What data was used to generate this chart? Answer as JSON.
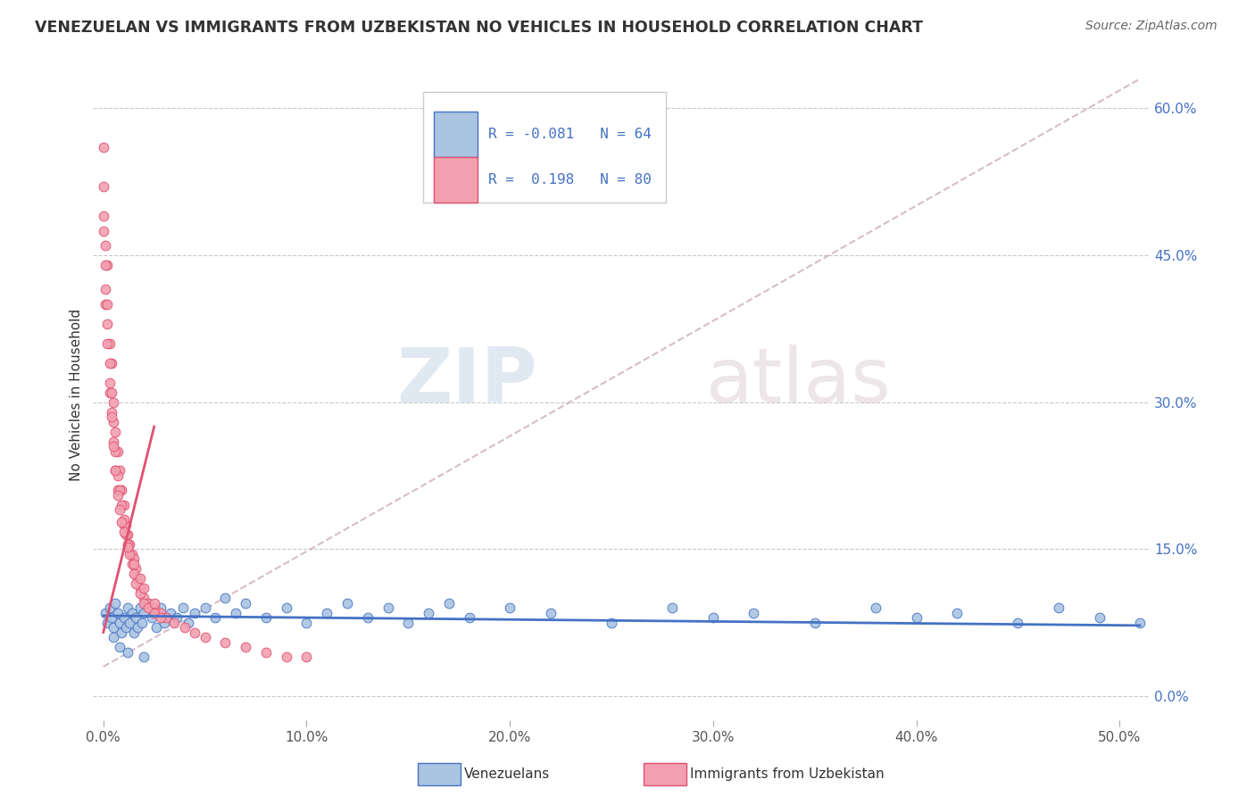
{
  "title": "VENEZUELAN VS IMMIGRANTS FROM UZBEKISTAN NO VEHICLES IN HOUSEHOLD CORRELATION CHART",
  "source": "Source: ZipAtlas.com",
  "ylabel_left": "No Vehicles in Household",
  "x_tick_vals": [
    0.0,
    0.1,
    0.2,
    0.3,
    0.4,
    0.5
  ],
  "y_tick_vals": [
    0.0,
    0.15,
    0.3,
    0.45,
    0.6
  ],
  "xlim": [
    -0.005,
    0.515
  ],
  "ylim": [
    -0.025,
    0.64
  ],
  "color_venezuelan": "#aac4e2",
  "color_uzbekistan": "#f2a0b0",
  "color_line_venezuelan": "#4472c4",
  "color_line_uzbekistan": "#e05070",
  "color_dashed_line": "#c8a0b0",
  "watermark_zip": "ZIP",
  "watermark_atlas": "atlas",
  "venezuelan_scatter_x": [
    0.001,
    0.002,
    0.003,
    0.004,
    0.005,
    0.006,
    0.007,
    0.008,
    0.009,
    0.01,
    0.011,
    0.012,
    0.013,
    0.014,
    0.015,
    0.016,
    0.017,
    0.018,
    0.019,
    0.02,
    0.022,
    0.024,
    0.026,
    0.028,
    0.03,
    0.033,
    0.036,
    0.039,
    0.042,
    0.045,
    0.05,
    0.055,
    0.06,
    0.065,
    0.07,
    0.08,
    0.09,
    0.1,
    0.11,
    0.12,
    0.13,
    0.14,
    0.15,
    0.16,
    0.17,
    0.18,
    0.2,
    0.22,
    0.25,
    0.28,
    0.3,
    0.32,
    0.35,
    0.38,
    0.4,
    0.42,
    0.45,
    0.47,
    0.49,
    0.51,
    0.005,
    0.008,
    0.012,
    0.02
  ],
  "venezuelan_scatter_y": [
    0.085,
    0.075,
    0.09,
    0.08,
    0.07,
    0.095,
    0.085,
    0.075,
    0.065,
    0.08,
    0.07,
    0.09,
    0.075,
    0.085,
    0.065,
    0.08,
    0.07,
    0.09,
    0.075,
    0.085,
    0.095,
    0.08,
    0.07,
    0.09,
    0.075,
    0.085,
    0.08,
    0.09,
    0.075,
    0.085,
    0.09,
    0.08,
    0.1,
    0.085,
    0.095,
    0.08,
    0.09,
    0.075,
    0.085,
    0.095,
    0.08,
    0.09,
    0.075,
    0.085,
    0.095,
    0.08,
    0.09,
    0.085,
    0.075,
    0.09,
    0.08,
    0.085,
    0.075,
    0.09,
    0.08,
    0.085,
    0.075,
    0.09,
    0.08,
    0.075,
    0.06,
    0.05,
    0.045,
    0.04
  ],
  "uzbekistan_scatter_x": [
    0.0,
    0.0,
    0.001,
    0.001,
    0.002,
    0.002,
    0.003,
    0.003,
    0.004,
    0.004,
    0.005,
    0.005,
    0.006,
    0.006,
    0.007,
    0.007,
    0.008,
    0.009,
    0.01,
    0.01,
    0.011,
    0.012,
    0.013,
    0.014,
    0.015,
    0.016,
    0.017,
    0.018,
    0.02,
    0.022,
    0.025,
    0.028,
    0.031,
    0.035,
    0.04,
    0.045,
    0.05,
    0.06,
    0.07,
    0.08,
    0.09,
    0.1,
    0.0,
    0.001,
    0.002,
    0.003,
    0.004,
    0.005,
    0.006,
    0.007,
    0.008,
    0.009,
    0.01,
    0.011,
    0.012,
    0.013,
    0.014,
    0.015,
    0.016,
    0.018,
    0.02,
    0.022,
    0.025,
    0.028,
    0.0,
    0.001,
    0.002,
    0.003,
    0.004,
    0.005,
    0.006,
    0.007,
    0.008,
    0.009,
    0.01,
    0.012,
    0.015,
    0.018,
    0.02,
    0.025
  ],
  "uzbekistan_scatter_y": [
    0.56,
    0.49,
    0.46,
    0.4,
    0.44,
    0.38,
    0.36,
    0.31,
    0.34,
    0.29,
    0.3,
    0.26,
    0.27,
    0.23,
    0.25,
    0.21,
    0.23,
    0.21,
    0.195,
    0.175,
    0.175,
    0.165,
    0.155,
    0.145,
    0.14,
    0.13,
    0.12,
    0.11,
    0.1,
    0.095,
    0.09,
    0.085,
    0.08,
    0.075,
    0.07,
    0.065,
    0.06,
    0.055,
    0.05,
    0.045,
    0.04,
    0.04,
    0.52,
    0.44,
    0.4,
    0.34,
    0.31,
    0.28,
    0.25,
    0.225,
    0.21,
    0.195,
    0.18,
    0.165,
    0.155,
    0.145,
    0.135,
    0.125,
    0.115,
    0.105,
    0.095,
    0.09,
    0.085,
    0.08,
    0.475,
    0.415,
    0.36,
    0.32,
    0.285,
    0.255,
    0.23,
    0.205,
    0.19,
    0.178,
    0.168,
    0.152,
    0.135,
    0.12,
    0.11,
    0.095
  ],
  "v_trend_x0": 0.0,
  "v_trend_x1": 0.51,
  "v_trend_y0": 0.082,
  "v_trend_y1": 0.072,
  "u_trend_solid_x0": 0.0,
  "u_trend_solid_x1": 0.025,
  "u_trend_solid_y0": 0.065,
  "u_trend_solid_y1": 0.275,
  "u_trend_dashed_x0": 0.0,
  "u_trend_dashed_x1": 0.51,
  "u_trend_dashed_y0": 0.03,
  "u_trend_dashed_y1": 0.63
}
